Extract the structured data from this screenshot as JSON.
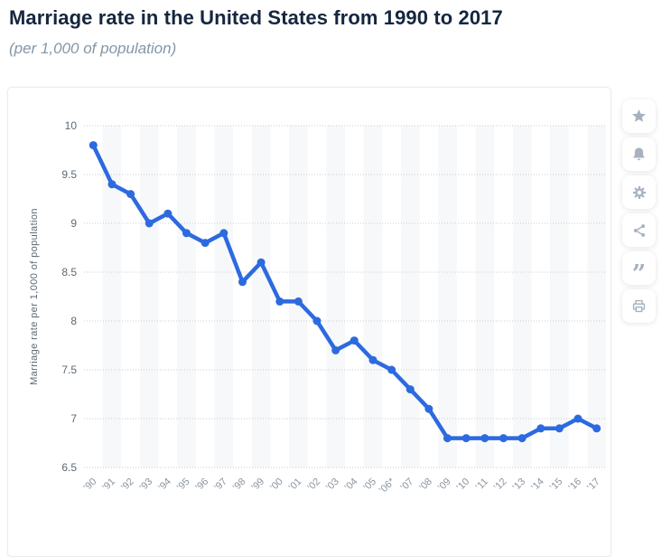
{
  "header": {
    "title": "Marriage rate in the United States from 1990 to 2017",
    "subtitle": "(per 1,000 of population)"
  },
  "chart_data": {
    "type": "line",
    "title": "Marriage rate in the United States from 1990 to 2017",
    "subtitle": "(per 1,000 of population)",
    "xlabel": "",
    "ylabel": "Marriage rate per 1,000 of population",
    "categories": [
      "’90",
      "’91",
      "’92",
      "’93",
      "’94",
      "’95",
      "’96",
      "’97",
      "’98",
      "’99",
      "’00",
      "’01",
      "’02",
      "’03",
      "’04",
      "’05",
      "’06*",
      "’07",
      "’08",
      "’09",
      "’10",
      "’11",
      "’12",
      "’13",
      "’14",
      "’15",
      "’16",
      "’17"
    ],
    "values": [
      9.8,
      9.4,
      9.3,
      9.0,
      9.1,
      8.9,
      8.8,
      8.9,
      8.4,
      8.6,
      8.2,
      8.2,
      8.0,
      7.7,
      7.8,
      7.6,
      7.5,
      7.3,
      7.1,
      6.8,
      6.8,
      6.8,
      6.8,
      6.8,
      6.9,
      6.9,
      7.0,
      6.9
    ],
    "ylim": [
      6.5,
      10
    ],
    "yticks": [
      10,
      9.5,
      9,
      8.5,
      8,
      7.5,
      7,
      6.5
    ],
    "grid": "horizontal-dotted",
    "legend": "none",
    "plot_bands": "alternating-vertical-columns",
    "colors": {
      "line": "#2d6ae0",
      "marker": "#2d6ae0",
      "band": "#f7f8f9",
      "gridline": "#c8ccd1",
      "ytick_label": "#5d6974",
      "xtick_label": "#8b959f",
      "axis_title": "#5d6974"
    }
  },
  "toolbar": {
    "buttons": [
      {
        "name": "favorite",
        "icon": "star-icon"
      },
      {
        "name": "notifications",
        "icon": "bell-icon"
      },
      {
        "name": "settings",
        "icon": "gear-icon"
      },
      {
        "name": "share",
        "icon": "share-icon"
      },
      {
        "name": "cite",
        "icon": "quote-icon"
      },
      {
        "name": "print",
        "icon": "print-icon"
      }
    ]
  }
}
